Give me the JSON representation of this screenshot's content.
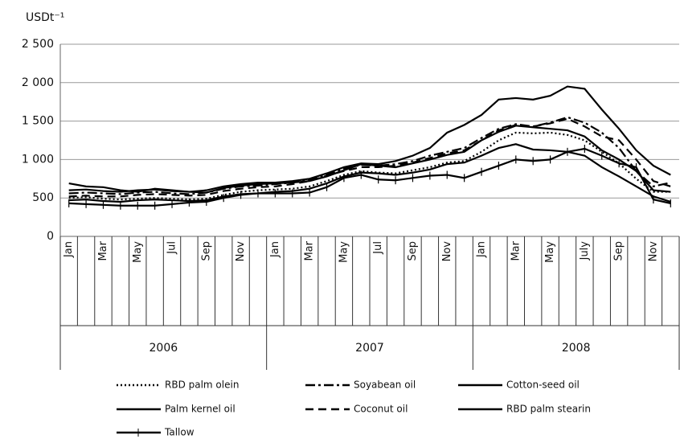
{
  "chart_data": {
    "type": "line",
    "y_label": "USDt⁻¹",
    "categories": [
      "Jan",
      null,
      "Mar",
      null,
      "May",
      null,
      "Jul",
      null,
      "Sep",
      null,
      "Nov",
      null,
      "Jan",
      null,
      "Mar",
      null,
      "May",
      null,
      "Jul",
      null,
      "Sep",
      null,
      "Nov",
      null,
      "Jan",
      null,
      "Mar",
      null,
      "May",
      null,
      "July",
      null,
      "Sep",
      null,
      "Nov",
      null
    ],
    "group_labels": [
      "2006",
      "2007",
      "2008"
    ],
    "ylim": [
      0,
      2500
    ],
    "yticks": [
      0,
      500,
      {
        "value": 1000,
        "label": "1 000"
      },
      {
        "value": 1500,
        "label": "1 500"
      },
      {
        "value": 2000,
        "label": "2 000"
      },
      {
        "value": 2500,
        "label": "2 500"
      }
    ],
    "grid": true,
    "series": [
      {
        "name": "RBD palm olein",
        "color": "#000",
        "style": "dotted",
        "values": [
          500,
          510,
          490,
          480,
          490,
          500,
          490,
          480,
          490,
          540,
          580,
          600,
          610,
          620,
          650,
          720,
          800,
          850,
          830,
          820,
          860,
          900,
          960,
          980,
          1100,
          1250,
          1350,
          1340,
          1350,
          1320,
          1250,
          1100,
          950,
          750,
          580,
          580
        ]
      },
      {
        "name": "Soyabean oil",
        "color": "#000",
        "style": "dashdot",
        "values": [
          560,
          570,
          560,
          550,
          570,
          580,
          560,
          550,
          570,
          620,
          650,
          660,
          680,
          700,
          740,
          800,
          880,
          930,
          920,
          940,
          980,
          1050,
          1100,
          1150,
          1280,
          1400,
          1460,
          1430,
          1480,
          1550,
          1480,
          1350,
          1150,
          850,
          650,
          700
        ]
      },
      {
        "name": "Cotton-seed oil",
        "color": "#000",
        "style": "solid",
        "values": [
          690,
          650,
          640,
          600,
          580,
          620,
          600,
          580,
          570,
          630,
          660,
          680,
          690,
          700,
          720,
          780,
          860,
          940,
          920,
          900,
          950,
          1000,
          1060,
          1100,
          1250,
          1360,
          1440,
          1420,
          1400,
          1380,
          1300,
          1120,
          1000,
          850,
          600,
          580
        ]
      },
      {
        "name": "Palm kernel oil",
        "color": "#000",
        "style": "solid",
        "values": [
          470,
          480,
          460,
          450,
          470,
          480,
          470,
          460,
          470,
          520,
          550,
          560,
          580,
          590,
          620,
          690,
          780,
          830,
          820,
          800,
          830,
          870,
          940,
          960,
          1050,
          1150,
          1200,
          1130,
          1120,
          1100,
          1050,
          900,
          780,
          650,
          520,
          450
        ]
      },
      {
        "name": "Coconut oil",
        "color": "#000",
        "style": "dashed",
        "values": [
          520,
          530,
          520,
          520,
          540,
          550,
          540,
          530,
          540,
          590,
          620,
          640,
          650,
          680,
          720,
          790,
          850,
          900,
          900,
          920,
          960,
          1020,
          1080,
          1120,
          1250,
          1380,
          1450,
          1430,
          1470,
          1530,
          1430,
          1300,
          1250,
          1000,
          720,
          650
        ]
      },
      {
        "name": "RBD palm stearin",
        "color": "#000",
        "style": "solid",
        "values": [
          600,
          610,
          590,
          580,
          600,
          610,
          590,
          580,
          600,
          650,
          680,
          700,
          700,
          720,
          750,
          820,
          900,
          950,
          940,
          980,
          1050,
          1150,
          1350,
          1450,
          1580,
          1780,
          1800,
          1780,
          1830,
          1950,
          1920,
          1650,
          1400,
          1120,
          920,
          800
        ]
      },
      {
        "name": "Tallow",
        "color": "#000",
        "style": "solid",
        "marker": "plus",
        "values": [
          430,
          420,
          410,
          400,
          400,
          400,
          420,
          440,
          450,
          500,
          540,
          560,
          560,
          560,
          570,
          640,
          760,
          800,
          740,
          730,
          760,
          790,
          800,
          760,
          840,
          920,
          1000,
          980,
          1000,
          1100,
          1140,
          1050,
          950,
          900,
          480,
          430
        ]
      }
    ]
  }
}
